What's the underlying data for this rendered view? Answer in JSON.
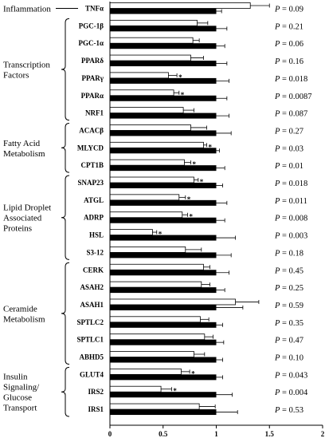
{
  "chart_data": {
    "type": "bar",
    "orientation": "horizontal",
    "xlim": [
      0,
      2
    ],
    "xticks": [
      "0",
      "0.5",
      "1",
      "1.5",
      "2"
    ],
    "significance_marker": "*",
    "series": [
      {
        "key": "open",
        "style": "white"
      },
      {
        "key": "filled",
        "style": "black"
      }
    ],
    "groups": [
      {
        "name": "Inflammation",
        "genes": [
          "TNFα"
        ]
      },
      {
        "name": "Transcription Factors",
        "genes": [
          "PGC-1β",
          "PGC-1α",
          "PPARδ",
          "PPARγ",
          "PPARα",
          "NRF1"
        ]
      },
      {
        "name": "Fatty Acid Metabolism",
        "genes": [
          "ACACβ",
          "MLYCD",
          "CPT1B"
        ]
      },
      {
        "name": "Lipid Droplet Associated Proteins",
        "genes": [
          "SNAP23",
          "ATGL",
          "ADRP",
          "HSL",
          "S3-12"
        ]
      },
      {
        "name": "Ceramide Metabolism",
        "genes": [
          "CERK",
          "ASAH2",
          "ASAH1",
          "SPTLC2",
          "SPTLC1",
          "ABHD5"
        ]
      },
      {
        "name": "Insulin Signaling/ Glucose Transport",
        "genes": [
          "GLUT4",
          "IRS2",
          "IRS1"
        ]
      }
    ],
    "rows": [
      {
        "label": "TNFα",
        "open": 1.32,
        "open_err": 0.18,
        "filled": 1.0,
        "filled_err": 0.05,
        "sig": false,
        "p_label": "P",
        "p_value": " = 0.09"
      },
      {
        "label": "PGC-1β",
        "open": 0.82,
        "open_err": 0.1,
        "filled": 1.0,
        "filled_err": 0.1,
        "sig": false,
        "p_label": "P",
        "p_value": " = 0.21"
      },
      {
        "label": "PGC-1α",
        "open": 0.78,
        "open_err": 0.06,
        "filled": 1.0,
        "filled_err": 0.08,
        "sig": false,
        "p_label": "P",
        "p_value": " = 0.06"
      },
      {
        "label": "PPARδ",
        "open": 0.76,
        "open_err": 0.12,
        "filled": 1.0,
        "filled_err": 0.1,
        "sig": false,
        "p_label": "P",
        "p_value": " = 0.16"
      },
      {
        "label": "PPARγ",
        "open": 0.55,
        "open_err": 0.08,
        "filled": 1.0,
        "filled_err": 0.12,
        "sig": true,
        "p_label": "P",
        "p_value": " = 0.018"
      },
      {
        "label": "PPARα",
        "open": 0.6,
        "open_err": 0.05,
        "filled": 1.0,
        "filled_err": 0.1,
        "sig": true,
        "p_label": "P",
        "p_value": " = 0.0087"
      },
      {
        "label": "NRF1",
        "open": 0.69,
        "open_err": 0.1,
        "filled": 1.0,
        "filled_err": 0.12,
        "sig": false,
        "p_label": "P",
        "p_value": " = 0.087"
      },
      {
        "label": "ACACβ",
        "open": 0.76,
        "open_err": 0.15,
        "filled": 1.0,
        "filled_err": 0.14,
        "sig": false,
        "p_label": "P",
        "p_value": " = 0.27"
      },
      {
        "label": "MLYCD",
        "open": 0.88,
        "open_err": 0.03,
        "filled": 1.0,
        "filled_err": 0.03,
        "sig": true,
        "p_label": "P",
        "p_value": " = 0.03"
      },
      {
        "label": "CPT1B",
        "open": 0.7,
        "open_err": 0.06,
        "filled": 1.0,
        "filled_err": 0.08,
        "sig": true,
        "p_label": "P",
        "p_value": " = 0.01"
      },
      {
        "label": "SNAP23",
        "open": 0.79,
        "open_err": 0.04,
        "filled": 1.0,
        "filled_err": 0.06,
        "sig": true,
        "p_label": "P",
        "p_value": " = 0.018"
      },
      {
        "label": "ATGL",
        "open": 0.65,
        "open_err": 0.06,
        "filled": 1.0,
        "filled_err": 0.1,
        "sig": true,
        "p_label": "P",
        "p_value": " = 0.011"
      },
      {
        "label": "ADRP",
        "open": 0.68,
        "open_err": 0.05,
        "filled": 1.0,
        "filled_err": 0.08,
        "sig": true,
        "p_label": "P",
        "p_value": " = 0.008"
      },
      {
        "label": "HSL",
        "open": 0.4,
        "open_err": 0.04,
        "filled": 1.0,
        "filled_err": 0.18,
        "sig": true,
        "p_label": "P",
        "p_value": " = 0.003"
      },
      {
        "label": "S3-12",
        "open": 0.71,
        "open_err": 0.15,
        "filled": 1.0,
        "filled_err": 0.14,
        "sig": false,
        "p_label": "P",
        "p_value": " = 0.18"
      },
      {
        "label": "CERK",
        "open": 0.88,
        "open_err": 0.06,
        "filled": 1.0,
        "filled_err": 0.12,
        "sig": false,
        "p_label": "P",
        "p_value": " = 0.45"
      },
      {
        "label": "ASAH2",
        "open": 0.86,
        "open_err": 0.08,
        "filled": 1.0,
        "filled_err": 0.08,
        "sig": false,
        "p_label": "P",
        "p_value": " = 0.25"
      },
      {
        "label": "ASAH1",
        "open": 1.18,
        "open_err": 0.22,
        "filled": 1.0,
        "filled_err": 0.25,
        "sig": false,
        "p_label": "P",
        "p_value": " = 0.59"
      },
      {
        "label": "SPTLC2",
        "open": 0.85,
        "open_err": 0.08,
        "filled": 1.0,
        "filled_err": 0.06,
        "sig": false,
        "p_label": "P",
        "p_value": " = 0.35"
      },
      {
        "label": "SPTLC1",
        "open": 0.89,
        "open_err": 0.08,
        "filled": 1.0,
        "filled_err": 0.07,
        "sig": false,
        "p_label": "P",
        "p_value": " = 0.47"
      },
      {
        "label": "ABHD5",
        "open": 0.79,
        "open_err": 0.1,
        "filled": 1.0,
        "filled_err": 0.06,
        "sig": false,
        "p_label": "P",
        "p_value": " = 0.10"
      },
      {
        "label": "GLUT4",
        "open": 0.67,
        "open_err": 0.08,
        "filled": 1.0,
        "filled_err": 0.06,
        "sig": true,
        "p_label": "P",
        "p_value": " = 0.043"
      },
      {
        "label": "IRS2",
        "open": 0.48,
        "open_err": 0.1,
        "filled": 1.0,
        "filled_err": 0.15,
        "sig": true,
        "p_label": "P",
        "p_value": " = 0.004"
      },
      {
        "label": "IRS1",
        "open": 0.84,
        "open_err": 0.15,
        "filled": 1.0,
        "filled_err": 0.2,
        "sig": false,
        "p_label": "P",
        "p_value": " = 0.53"
      }
    ]
  }
}
